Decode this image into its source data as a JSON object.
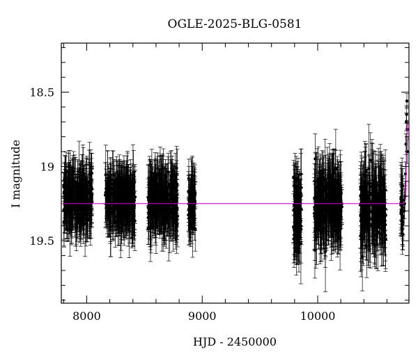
{
  "chart_data": {
    "type": "scatter",
    "title": "OGLE-2025-BLG-0581",
    "xlabel": "HJD - 2450000",
    "ylabel": "I magnitude",
    "xlim": [
      7780,
      10790
    ],
    "ylim": [
      19.92,
      18.17
    ],
    "y_inverted": true,
    "x_ticks": [
      8000,
      9000,
      10000
    ],
    "y_ticks": [
      18.5,
      19,
      19.5
    ],
    "x_tick_labels": [
      "8000",
      "9000",
      "10000"
    ],
    "y_tick_labels": [
      "18.5",
      "19",
      "19.5"
    ],
    "grid": false,
    "legend": "none",
    "colors": {
      "points": "#000000",
      "model": "#cc00cc",
      "frame": "#000000"
    },
    "seasons": [
      {
        "x_start": 7800,
        "x_end": 8050,
        "mag_mean": 19.22,
        "mag_spread": 0.14,
        "err_min": 0.08,
        "err_max": 0.22
      },
      {
        "x_start": 8160,
        "x_end": 8420,
        "mag_mean": 19.22,
        "mag_spread": 0.14,
        "err_min": 0.08,
        "err_max": 0.22
      },
      {
        "x_start": 8530,
        "x_end": 8790,
        "mag_mean": 19.24,
        "mag_spread": 0.15,
        "err_min": 0.08,
        "err_max": 0.24
      },
      {
        "x_start": 8880,
        "x_end": 8940,
        "mag_mean": 19.25,
        "mag_spread": 0.13,
        "err_min": 0.08,
        "err_max": 0.2
      },
      {
        "x_start": 9790,
        "x_end": 9860,
        "mag_mean": 19.3,
        "mag_spread": 0.18,
        "err_min": 0.1,
        "err_max": 0.3
      },
      {
        "x_start": 9970,
        "x_end": 10210,
        "mag_mean": 19.26,
        "mag_spread": 0.17,
        "err_min": 0.09,
        "err_max": 0.28
      },
      {
        "x_start": 10370,
        "x_end": 10590,
        "mag_mean": 19.27,
        "mag_spread": 0.18,
        "err_min": 0.09,
        "err_max": 0.3
      },
      {
        "x_start": 10720,
        "x_end": 10740,
        "mag_mean": 19.25,
        "mag_spread": 0.15,
        "err_min": 0.08,
        "err_max": 0.25
      }
    ],
    "event_points": [
      {
        "x": 10748,
        "y": 19.3,
        "err": 0.1
      },
      {
        "x": 10752,
        "y": 19.25,
        "err": 0.1
      },
      {
        "x": 10756,
        "y": 19.2,
        "err": 0.1
      },
      {
        "x": 10760,
        "y": 19.05,
        "err": 0.08
      },
      {
        "x": 10764,
        "y": 18.85,
        "err": 0.07
      },
      {
        "x": 10767,
        "y": 18.7,
        "err": 0.06
      },
      {
        "x": 10770,
        "y": 18.65,
        "err": 0.06
      },
      {
        "x": 10772,
        "y": 18.56,
        "err": 0.05
      },
      {
        "x": 10774,
        "y": 18.75,
        "err": 0.06
      },
      {
        "x": 10776,
        "y": 18.9,
        "err": 0.08
      }
    ],
    "model_curve": {
      "baseline": 19.25,
      "points": [
        {
          "x": 7780,
          "y": 19.25
        },
        {
          "x": 10740,
          "y": 19.25
        },
        {
          "x": 10755,
          "y": 19.24
        },
        {
          "x": 10760,
          "y": 19.22
        },
        {
          "x": 10764,
          "y": 19.1
        },
        {
          "x": 10767,
          "y": 18.95
        },
        {
          "x": 10770,
          "y": 18.82
        },
        {
          "x": 10775,
          "y": 18.72
        },
        {
          "x": 10790,
          "y": 18.7
        }
      ]
    }
  }
}
